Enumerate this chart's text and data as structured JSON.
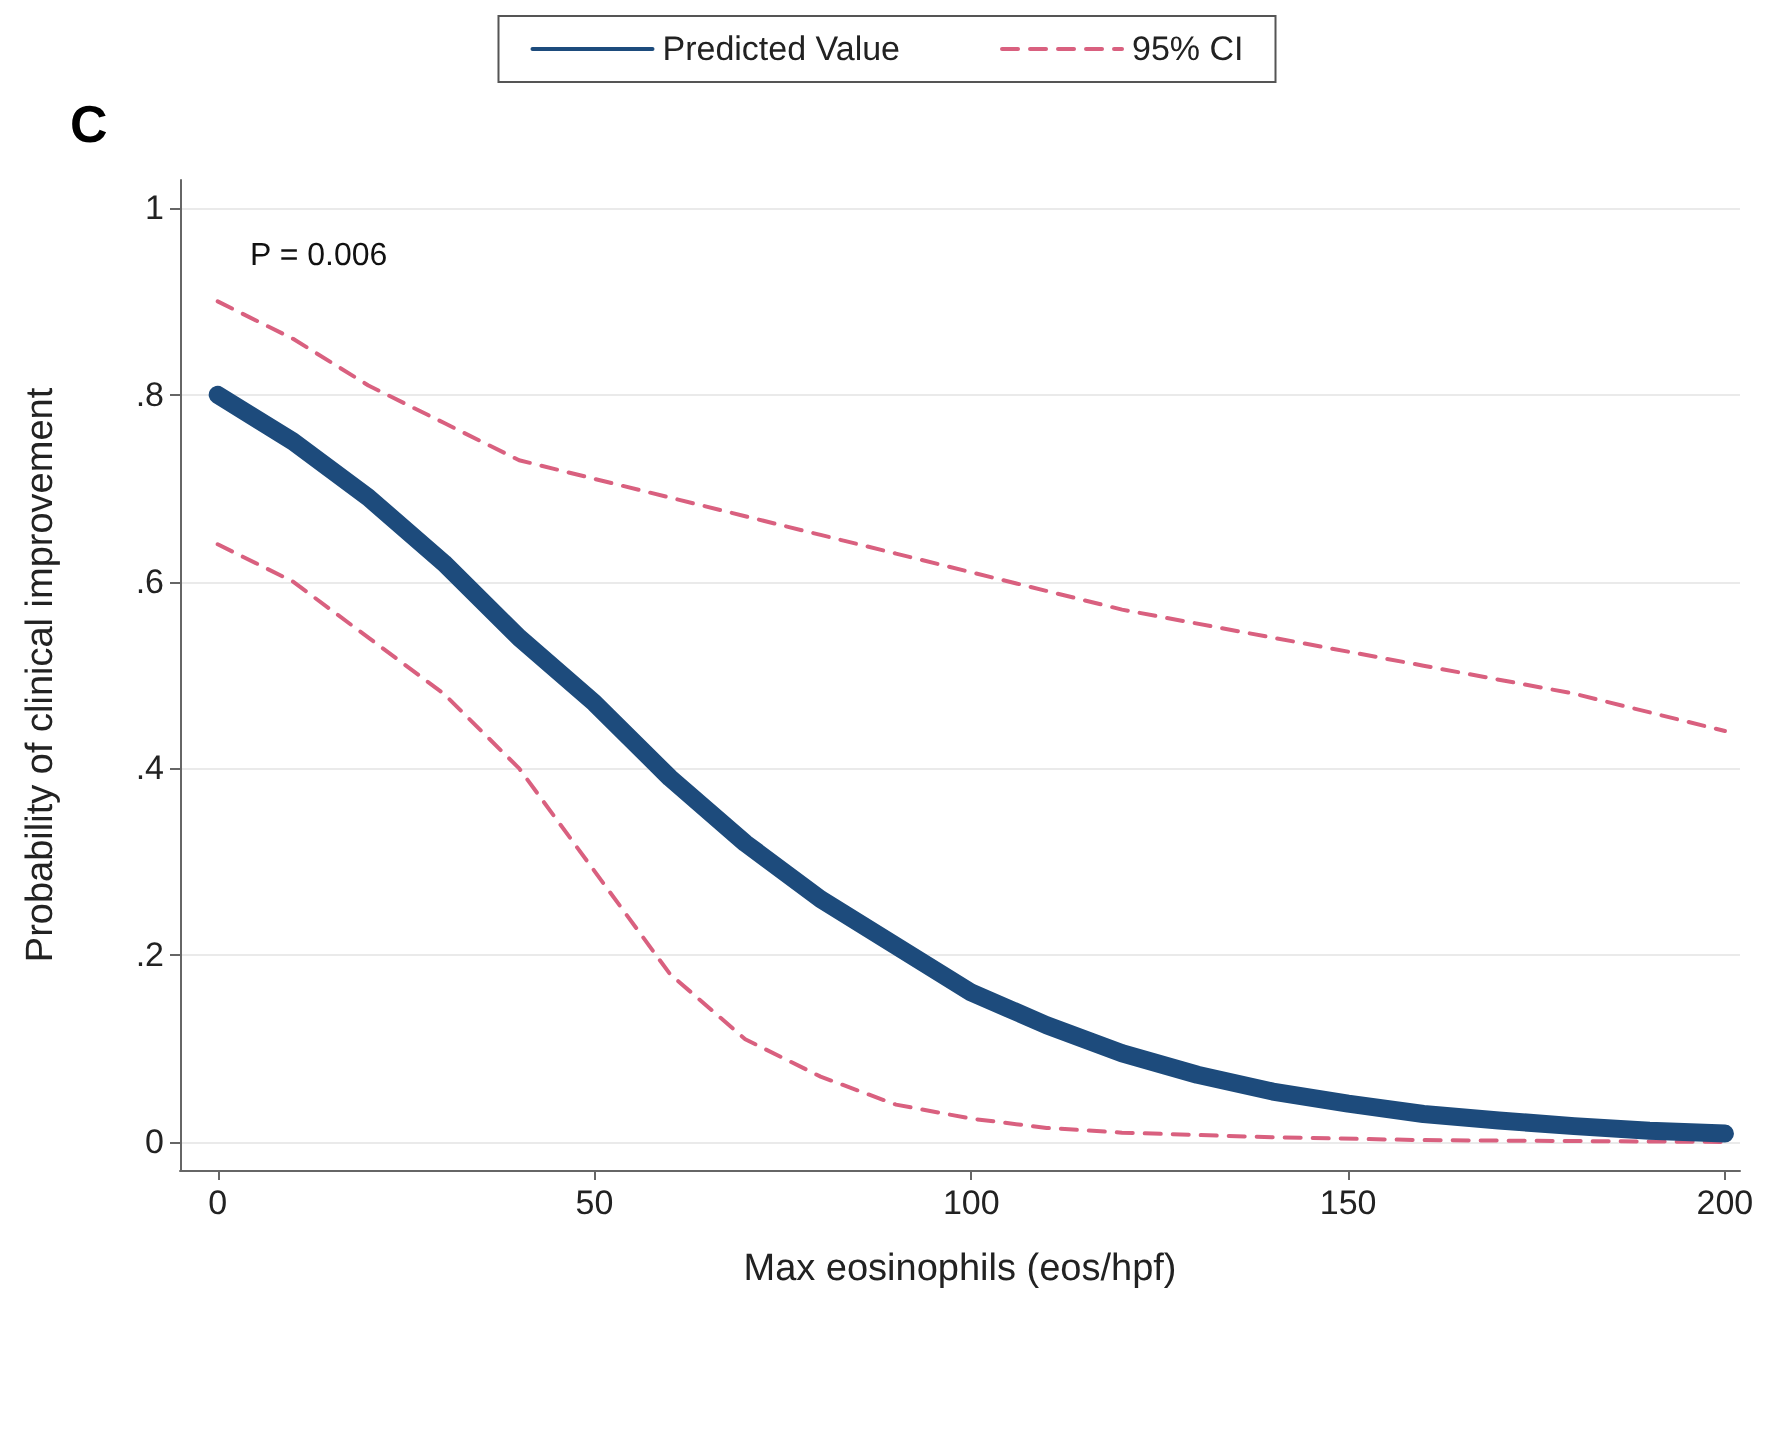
{
  "chart_data": {
    "type": "line",
    "title": "C",
    "xlabel": "Max eosinophils (eos/hpf)",
    "ylabel": "Probability of clinical improvement",
    "annotations": [
      "P = 0.006"
    ],
    "xlim": [
      -5,
      202
    ],
    "xticks": [
      0,
      50,
      100,
      150,
      200
    ],
    "ylim": [
      -0.03,
      1.03
    ],
    "yticks": [
      0,
      {
        "value": 0.2,
        "label": ".2"
      },
      {
        "value": 0.4,
        "label": ".4"
      },
      {
        "value": 0.6,
        "label": ".6"
      },
      {
        "value": 0.8,
        "label": ".8"
      },
      1
    ],
    "grid": "y",
    "legend": "top",
    "line_style": "solid",
    "series": [
      {
        "name": "Predicted Value",
        "color": "#1d4b7c",
        "marker": "none",
        "x": [
          0,
          10,
          20,
          30,
          40,
          50,
          60,
          70,
          80,
          90,
          100,
          110,
          120,
          130,
          140,
          150,
          160,
          170,
          180,
          190,
          200
        ],
        "values": [
          0.8,
          0.75,
          0.69,
          0.62,
          0.54,
          0.47,
          0.39,
          0.32,
          0.26,
          0.21,
          0.16,
          0.125,
          0.095,
          0.072,
          0.054,
          0.041,
          0.03,
          0.023,
          0.017,
          0.012,
          0.009
        ]
      },
      {
        "name": "95% CI",
        "color": "#d9607f",
        "line_style": "dashed",
        "marker": "none",
        "x": [
          0,
          10,
          20,
          30,
          40,
          50,
          60,
          70,
          80,
          90,
          100,
          120,
          140,
          160,
          180,
          200
        ],
        "values": [
          0.9,
          0.86,
          0.81,
          0.77,
          0.73,
          0.71,
          0.69,
          0.67,
          0.65,
          0.63,
          0.61,
          0.57,
          0.54,
          0.51,
          0.48,
          0.44
        ]
      },
      {
        "color": "#d9607f",
        "line_style": "dashed",
        "marker": "none",
        "x": [
          0,
          10,
          20,
          30,
          40,
          50,
          60,
          70,
          80,
          90,
          100,
          110,
          120,
          140,
          160,
          180,
          200
        ],
        "values": [
          0.64,
          0.6,
          0.54,
          0.48,
          0.4,
          0.29,
          0.18,
          0.11,
          0.07,
          0.04,
          0.025,
          0.015,
          0.01,
          0.005,
          0.002,
          0.001,
          0
        ]
      }
    ]
  }
}
